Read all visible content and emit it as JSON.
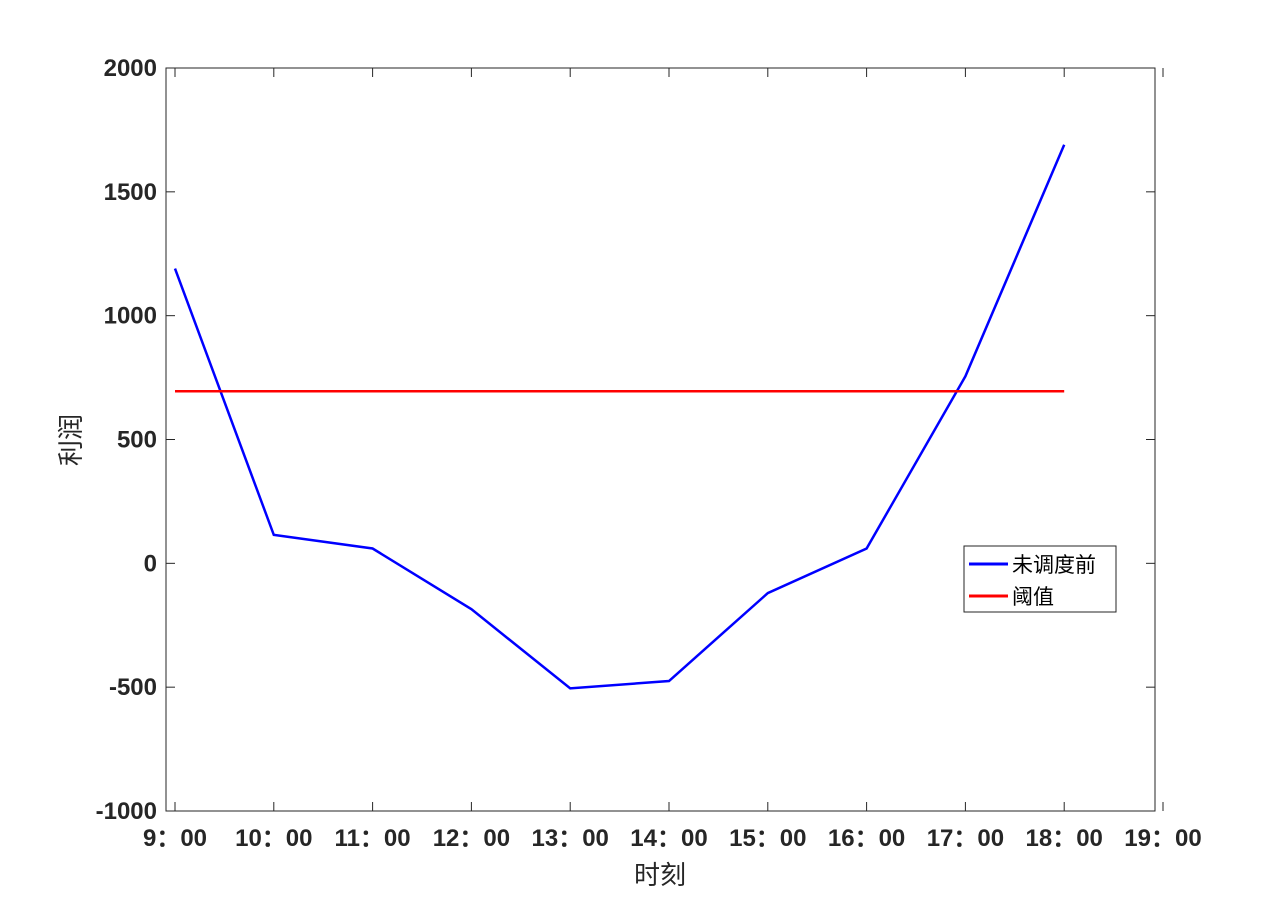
{
  "chart_data": {
    "type": "line",
    "xlabel": "时刻",
    "ylabel": "利润",
    "ylim": [
      -1000,
      2000
    ],
    "yticks": [
      -1000,
      -500,
      0,
      500,
      1000,
      1500,
      2000
    ],
    "xtick_labels": [
      "9：00",
      "10：00",
      "11：00",
      "12：00",
      "13：00",
      "14：00",
      "15：00",
      "16：00",
      "17：00",
      "18：00",
      "19：00"
    ],
    "x": [
      9,
      10,
      11,
      12,
      13,
      14,
      15,
      16,
      17,
      18
    ],
    "series": [
      {
        "name": "未调度前",
        "color": "#0000ff",
        "values": [
          1190,
          115,
          60,
          -185,
          -505,
          -475,
          -120,
          60,
          755,
          1690
        ]
      },
      {
        "name": "阈值",
        "color": "#ff0000",
        "values": [
          695,
          695,
          695,
          695,
          695,
          695,
          695,
          695,
          695,
          695
        ]
      }
    ],
    "legend_position": "right",
    "grid": false
  }
}
